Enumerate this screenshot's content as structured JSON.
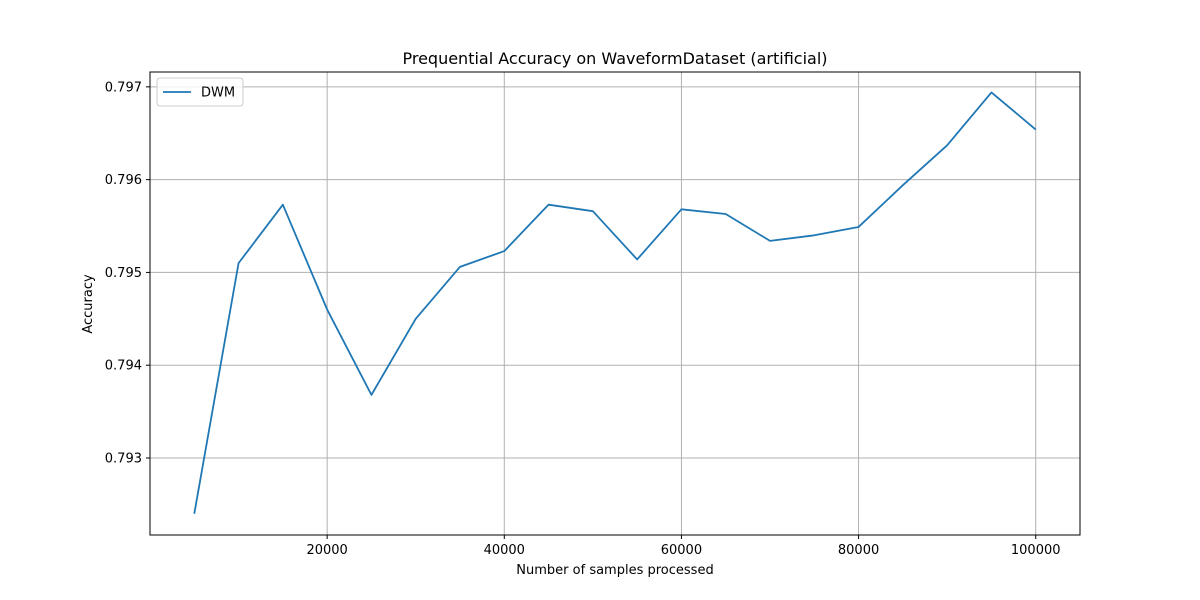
{
  "chart_data": {
    "type": "line",
    "title": "Prequential Accuracy on WaveformDataset (artificial)",
    "xlabel": "Number of samples processed",
    "ylabel": "Accuracy",
    "xlim": [
      0,
      105000
    ],
    "ylim": [
      0.79217,
      0.79716
    ],
    "xticks": [
      20000,
      40000,
      60000,
      80000,
      100000
    ],
    "xtick_labels": [
      "20000",
      "40000",
      "60000",
      "80000",
      "100000"
    ],
    "yticks": [
      0.793,
      0.794,
      0.795,
      0.796,
      0.797
    ],
    "ytick_labels": [
      "0.793",
      "0.794",
      "0.795",
      "0.796",
      "0.797"
    ],
    "grid": true,
    "legend_position": "top-left",
    "x": [
      5000,
      10000,
      15000,
      20000,
      25000,
      30000,
      35000,
      40000,
      45000,
      50000,
      55000,
      60000,
      65000,
      70000,
      75000,
      80000,
      85000,
      90000,
      95000,
      100000
    ],
    "series": [
      {
        "name": "DWM",
        "color": "#1f77b4",
        "values": [
          0.7924,
          0.7951,
          0.79573,
          0.7946,
          0.79368,
          0.7945,
          0.79506,
          0.79523,
          0.79573,
          0.79566,
          0.79514,
          0.79568,
          0.79563,
          0.79534,
          0.7954,
          0.79549,
          0.79594,
          0.79637,
          0.79694,
          0.79654
        ]
      }
    ]
  }
}
